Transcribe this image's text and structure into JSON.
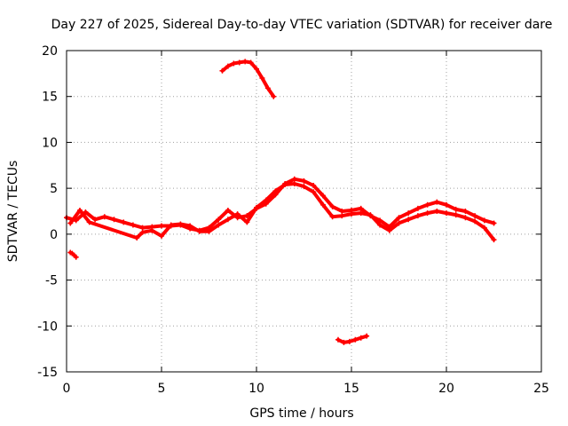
{
  "chart_data": {
    "type": "scatter",
    "title": "Day 227 of 2025, Sidereal Day-to-day VTEC variation (SDTVAR) for receiver dare",
    "xlabel": "GPS time / hours",
    "ylabel": "SDTVAR / TECUs",
    "xlim": [
      0,
      25
    ],
    "ylim": [
      -15,
      20
    ],
    "xticks": [
      0,
      5,
      10,
      15,
      20,
      25
    ],
    "yticks": [
      -15,
      -10,
      -5,
      0,
      5,
      10,
      15,
      20
    ],
    "xtick_labels": [
      "0",
      "5",
      "10",
      "15",
      "20",
      "25"
    ],
    "ytick_labels": [
      "-15",
      "-10",
      "-5",
      "0",
      "5",
      "10",
      "15",
      "20"
    ],
    "grid": true,
    "marker_color": "#ff0000",
    "series": [
      {
        "name": "main-band-a",
        "x": [
          0.0,
          0.5,
          1.0,
          1.5,
          2.0,
          2.5,
          3.0,
          3.5,
          4.0,
          4.5,
          5.0,
          5.5,
          6.0,
          6.5,
          7.0,
          7.5,
          8.0,
          8.5,
          9.0,
          9.5,
          10.0,
          10.5,
          11.0,
          11.5,
          12.0,
          12.5,
          13.0,
          13.5,
          14.0,
          14.5,
          15.0,
          15.5,
          16.0,
          16.5,
          17.0,
          17.5,
          18.0,
          18.5,
          19.0,
          19.5,
          20.0,
          20.5,
          21.0,
          21.5,
          22.0,
          22.5
        ],
        "y": [
          1.8,
          1.5,
          2.4,
          1.6,
          1.9,
          1.6,
          1.3,
          1.0,
          0.7,
          0.8,
          0.9,
          0.9,
          1.0,
          0.6,
          0.4,
          0.7,
          1.6,
          2.6,
          1.8,
          2.0,
          2.8,
          3.3,
          4.3,
          5.5,
          6.0,
          5.8,
          5.3,
          4.2,
          3.0,
          2.5,
          2.6,
          2.8,
          2.0,
          1.5,
          0.8,
          1.8,
          2.3,
          2.8,
          3.2,
          3.5,
          3.2,
          2.7,
          2.5,
          2.0,
          1.5,
          1.2
        ]
      },
      {
        "name": "main-band-b",
        "x": [
          0.2,
          0.7,
          1.2,
          3.7,
          4.0,
          4.5,
          5.0,
          5.5,
          6.0,
          6.5,
          7.0,
          7.5,
          8.0,
          8.5,
          9.0,
          9.5,
          10.0,
          10.5,
          11.0,
          11.5,
          12.0,
          12.5,
          13.0,
          13.5,
          14.0,
          14.5,
          15.0,
          15.5,
          16.0,
          16.5,
          17.0,
          17.5,
          18.0,
          18.5,
          19.0,
          19.5,
          20.0,
          20.5,
          21.0,
          21.5,
          22.0,
          22.5
        ],
        "y": [
          1.2,
          2.6,
          1.3,
          -0.4,
          0.2,
          0.4,
          -0.2,
          1.0,
          1.1,
          0.9,
          0.3,
          0.3,
          1.0,
          1.6,
          2.2,
          1.3,
          2.9,
          3.7,
          4.7,
          5.4,
          5.5,
          5.2,
          4.6,
          3.2,
          1.9,
          2.0,
          2.2,
          2.3,
          2.1,
          1.0,
          0.4,
          1.2,
          1.6,
          2.0,
          2.3,
          2.5,
          2.3,
          2.1,
          1.8,
          1.4,
          0.7,
          -0.6
        ]
      },
      {
        "name": "upper-arc",
        "x": [
          8.2,
          8.5,
          8.8,
          9.1,
          9.4,
          9.7,
          10.0,
          10.3,
          10.6,
          10.9
        ],
        "y": [
          17.8,
          18.3,
          18.6,
          18.7,
          18.8,
          18.7,
          18.0,
          17.0,
          15.9,
          15.0
        ]
      },
      {
        "name": "lower-arc",
        "x": [
          14.3,
          14.6,
          14.9,
          15.2,
          15.5,
          15.8
        ],
        "y": [
          -11.5,
          -11.8,
          -11.7,
          -11.5,
          -11.3,
          -11.1
        ]
      },
      {
        "name": "small-cluster",
        "x": [
          0.2,
          0.3,
          0.4,
          0.5
        ],
        "y": [
          -2.0,
          -2.1,
          -2.3,
          -2.5
        ]
      }
    ]
  }
}
